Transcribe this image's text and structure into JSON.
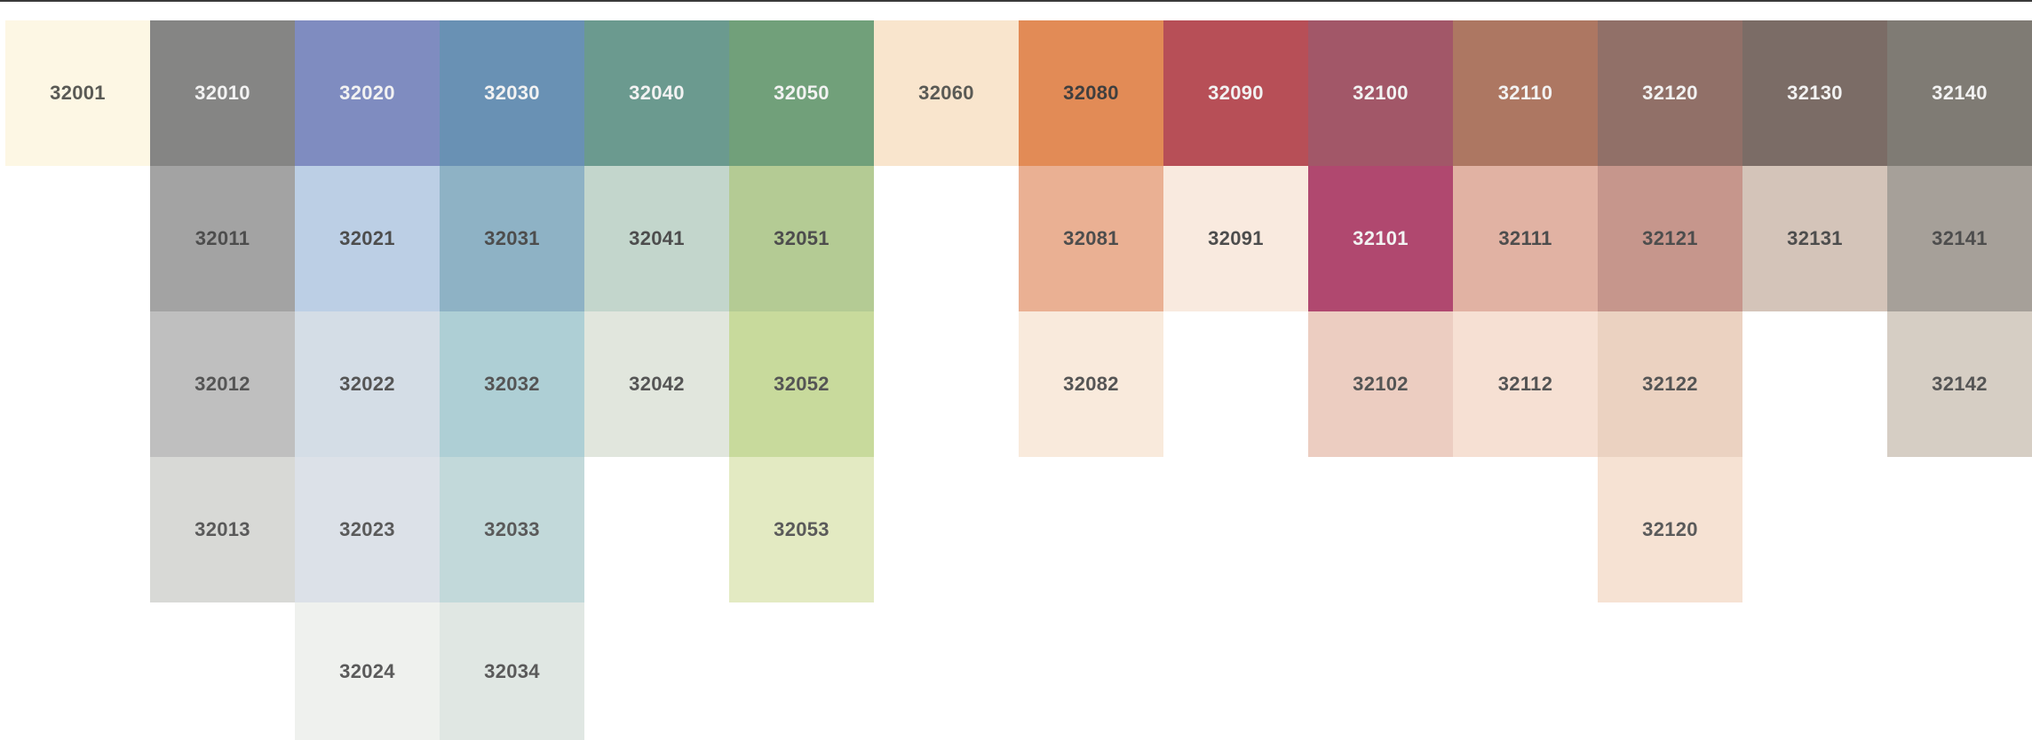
{
  "palette": {
    "columns": [
      {
        "swatches": [
          {
            "code": "32001",
            "color": "#fdf7e4",
            "text_color": "#5a5a55"
          }
        ]
      },
      {
        "swatches": [
          {
            "code": "32010",
            "color": "#858584",
            "text_color": "#f2f2f2"
          },
          {
            "code": "32011",
            "color": "#a3a3a3",
            "text_color": "#4d4d4d"
          },
          {
            "code": "32012",
            "color": "#bfbfbf",
            "text_color": "#555555"
          },
          {
            "code": "32013",
            "color": "#d8d9d6",
            "text_color": "#5a5a5a"
          }
        ]
      },
      {
        "swatches": [
          {
            "code": "32020",
            "color": "#7f8cc0",
            "text_color": "#f2f2f2"
          },
          {
            "code": "32021",
            "color": "#bccfe5",
            "text_color": "#4d4d4d"
          },
          {
            "code": "32022",
            "color": "#d4dde6",
            "text_color": "#555555"
          },
          {
            "code": "32023",
            "color": "#dce1e8",
            "text_color": "#5a5a5a"
          },
          {
            "code": "32024",
            "color": "#eff1ee",
            "text_color": "#5a5a5a"
          }
        ]
      },
      {
        "swatches": [
          {
            "code": "32030",
            "color": "#6991b4",
            "text_color": "#f2f2f2"
          },
          {
            "code": "32031",
            "color": "#8eb2c5",
            "text_color": "#4d4d4d"
          },
          {
            "code": "32032",
            "color": "#aecfd5",
            "text_color": "#555555"
          },
          {
            "code": "32033",
            "color": "#c2d9da",
            "text_color": "#5a5a5a"
          },
          {
            "code": "32034",
            "color": "#e0e7e3",
            "text_color": "#5a5a5a"
          }
        ]
      },
      {
        "swatches": [
          {
            "code": "32040",
            "color": "#6b9a8f",
            "text_color": "#f2f2f2"
          },
          {
            "code": "32041",
            "color": "#c3d6cc",
            "text_color": "#4d4d4d"
          },
          {
            "code": "32042",
            "color": "#e1e6dd",
            "text_color": "#555555"
          }
        ]
      },
      {
        "swatches": [
          {
            "code": "32050",
            "color": "#71a07a",
            "text_color": "#f2f2f2"
          },
          {
            "code": "32051",
            "color": "#b4cb94",
            "text_color": "#4d4d4d"
          },
          {
            "code": "32052",
            "color": "#c8da9c",
            "text_color": "#555555"
          },
          {
            "code": "32053",
            "color": "#e3eac2",
            "text_color": "#5a5a5a"
          }
        ]
      },
      {
        "swatches": [
          {
            "code": "32060",
            "color": "#f9e5cd",
            "text_color": "#5a5a55"
          }
        ]
      },
      {
        "swatches": [
          {
            "code": "32080",
            "color": "#e28b56",
            "text_color": "#3f3f3f"
          },
          {
            "code": "32081",
            "color": "#eab093",
            "text_color": "#4d4d4d"
          },
          {
            "code": "32082",
            "color": "#f9eadc",
            "text_color": "#555555"
          }
        ]
      },
      {
        "swatches": [
          {
            "code": "32090",
            "color": "#b74f57",
            "text_color": "#f2f2f2"
          },
          {
            "code": "32091",
            "color": "#f9eadf",
            "text_color": "#4d4d4d"
          }
        ]
      },
      {
        "swatches": [
          {
            "code": "32100",
            "color": "#a25768",
            "text_color": "#f2f2f2"
          },
          {
            "code": "32101",
            "color": "#b0486f",
            "text_color": "#f2f2f2"
          },
          {
            "code": "32102",
            "color": "#eccdc1",
            "text_color": "#555555"
          }
        ]
      },
      {
        "swatches": [
          {
            "code": "32110",
            "color": "#ad7762",
            "text_color": "#f2f2f2"
          },
          {
            "code": "32111",
            "color": "#e1b2a3",
            "text_color": "#4d4d4d"
          },
          {
            "code": "32112",
            "color": "#f6e0d3",
            "text_color": "#555555"
          }
        ]
      },
      {
        "swatches": [
          {
            "code": "32120",
            "color": "#917068",
            "text_color": "#f2f2f2"
          },
          {
            "code": "32121",
            "color": "#c6968c",
            "text_color": "#4d4d4d"
          },
          {
            "code": "32122",
            "color": "#ebd2c1",
            "text_color": "#555555"
          },
          {
            "code": "32120",
            "color": "#f6e2d3",
            "text_color": "#5a5a5a"
          }
        ]
      },
      {
        "swatches": [
          {
            "code": "32130",
            "color": "#7b6c66",
            "text_color": "#f2f2f2"
          },
          {
            "code": "32131",
            "color": "#d4c4b9",
            "text_color": "#4d4d4d"
          }
        ]
      },
      {
        "swatches": [
          {
            "code": "32140",
            "color": "#7f7b74",
            "text_color": "#f2f2f2"
          },
          {
            "code": "32141",
            "color": "#a6a099",
            "text_color": "#4d4d4d"
          },
          {
            "code": "32142",
            "color": "#d6cec4",
            "text_color": "#555555"
          }
        ]
      }
    ]
  }
}
